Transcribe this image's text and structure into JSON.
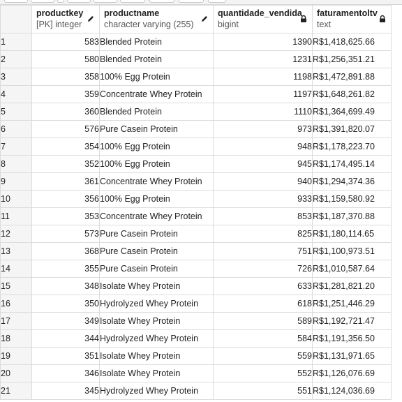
{
  "columns": [
    {
      "name": "productkey",
      "type": "[PK] integer",
      "icon": "pencil-icon"
    },
    {
      "name": "productname",
      "type": "character varying (255)",
      "icon": "pencil-icon"
    },
    {
      "name": "quantidade_vendida",
      "type": "bigint",
      "icon": "lock-icon"
    },
    {
      "name": "faturamentoltv",
      "type": "text",
      "icon": "lock-icon"
    }
  ],
  "rows": [
    {
      "n": "1",
      "productkey": "583",
      "productname": "Blended Protein",
      "quantidade_vendida": "1390",
      "faturamentoltv": "R$1,418,625.66"
    },
    {
      "n": "2",
      "productkey": "580",
      "productname": "Blended Protein",
      "quantidade_vendida": "1231",
      "faturamentoltv": "R$1,256,351.21"
    },
    {
      "n": "3",
      "productkey": "358",
      "productname": "100% Egg Protein",
      "quantidade_vendida": "1198",
      "faturamentoltv": "R$1,472,891.88"
    },
    {
      "n": "4",
      "productkey": "359",
      "productname": "Concentrate Whey Protein",
      "quantidade_vendida": "1197",
      "faturamentoltv": "R$1,648,261.82"
    },
    {
      "n": "5",
      "productkey": "360",
      "productname": "Blended Protein",
      "quantidade_vendida": "1110",
      "faturamentoltv": "R$1,364,699.49"
    },
    {
      "n": "6",
      "productkey": "576",
      "productname": "Pure Casein Protein",
      "quantidade_vendida": "973",
      "faturamentoltv": "R$1,391,820.07"
    },
    {
      "n": "7",
      "productkey": "354",
      "productname": "100% Egg Protein",
      "quantidade_vendida": "948",
      "faturamentoltv": "R$1,178,223.70"
    },
    {
      "n": "8",
      "productkey": "352",
      "productname": "100% Egg Protein",
      "quantidade_vendida": "945",
      "faturamentoltv": "R$1,174,495.14"
    },
    {
      "n": "9",
      "productkey": "361",
      "productname": "Concentrate Whey Protein",
      "quantidade_vendida": "940",
      "faturamentoltv": "R$1,294,374.36"
    },
    {
      "n": "10",
      "productkey": "356",
      "productname": "100% Egg Protein",
      "quantidade_vendida": "933",
      "faturamentoltv": "R$1,159,580.92"
    },
    {
      "n": "11",
      "productkey": "353",
      "productname": "Concentrate Whey Protein",
      "quantidade_vendida": "853",
      "faturamentoltv": "R$1,187,370.88"
    },
    {
      "n": "12",
      "productkey": "573",
      "productname": "Pure Casein Protein",
      "quantidade_vendida": "825",
      "faturamentoltv": "R$1,180,114.65"
    },
    {
      "n": "13",
      "productkey": "368",
      "productname": "Pure Casein Protein",
      "quantidade_vendida": "751",
      "faturamentoltv": "R$1,100,973.51"
    },
    {
      "n": "14",
      "productkey": "355",
      "productname": "Pure Casein Protein",
      "quantidade_vendida": "726",
      "faturamentoltv": "R$1,010,587.64"
    },
    {
      "n": "15",
      "productkey": "348",
      "productname": "Isolate Whey Protein",
      "quantidade_vendida": "633",
      "faturamentoltv": "R$1,281,821.20"
    },
    {
      "n": "16",
      "productkey": "350",
      "productname": "Hydrolyzed Whey Protein",
      "quantidade_vendida": "618",
      "faturamentoltv": "R$1,251,446.29"
    },
    {
      "n": "17",
      "productkey": "349",
      "productname": "Isolate Whey Protein",
      "quantidade_vendida": "589",
      "faturamentoltv": "R$1,192,721.47"
    },
    {
      "n": "18",
      "productkey": "344",
      "productname": "Hydrolyzed Whey Protein",
      "quantidade_vendida": "584",
      "faturamentoltv": "R$1,191,356.50"
    },
    {
      "n": "19",
      "productkey": "351",
      "productname": "Isolate Whey Protein",
      "quantidade_vendida": "559",
      "faturamentoltv": "R$1,131,971.65"
    },
    {
      "n": "20",
      "productkey": "346",
      "productname": "Isolate Whey Protein",
      "quantidade_vendida": "552",
      "faturamentoltv": "R$1,126,076.69"
    },
    {
      "n": "21",
      "productkey": "345",
      "productname": "Hydrolyzed Whey Protein",
      "quantidade_vendida": "551",
      "faturamentoltv": "R$1,124,036.69"
    }
  ]
}
